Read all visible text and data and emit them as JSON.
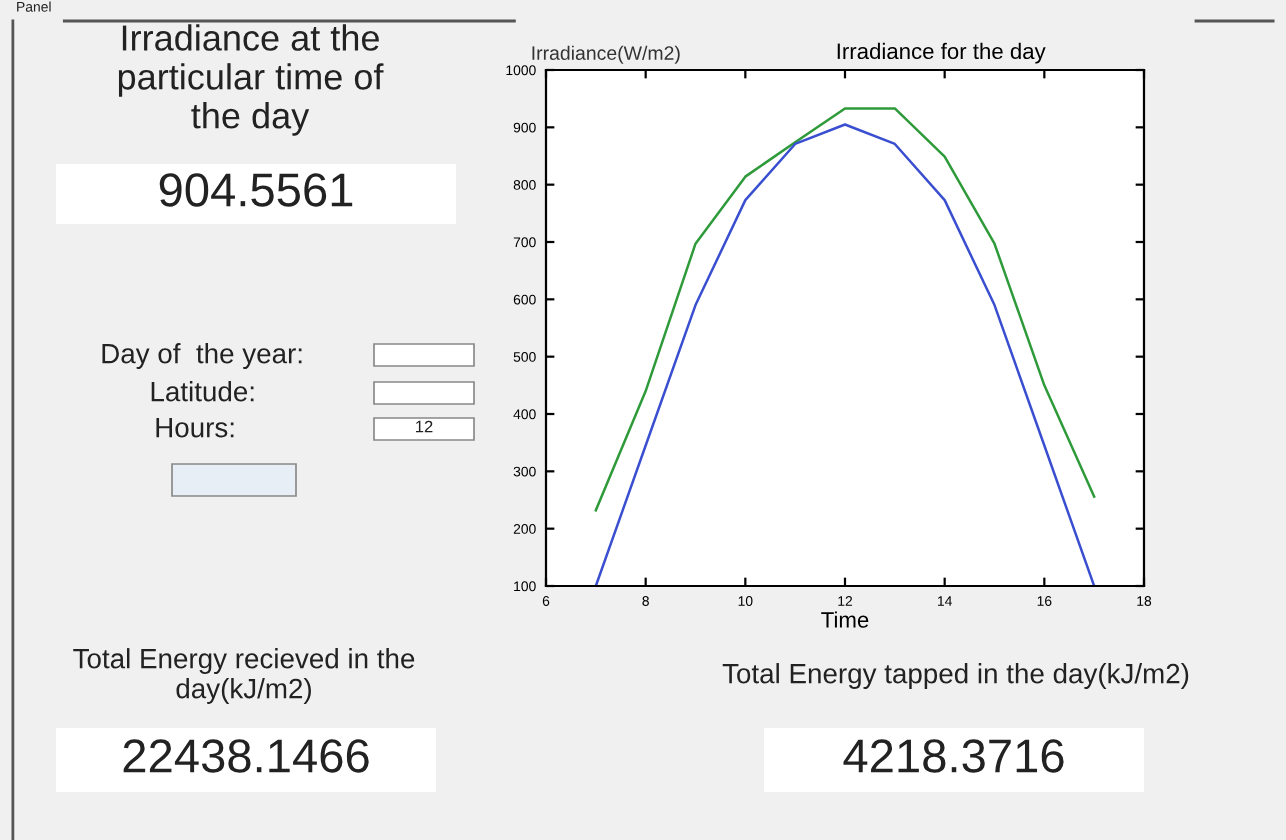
{
  "chart_data": {
    "type": "line",
    "title": "Irradiance for the day",
    "ylabel": "Irradiance(W/m2)",
    "xlabel": "Time",
    "xlim": [
      6,
      18
    ],
    "xticks": [
      6,
      8,
      10,
      12,
      14,
      16,
      18
    ],
    "ylim": [
      100,
      1000
    ],
    "yticks": [
      100,
      200,
      300,
      400,
      500,
      600,
      700,
      800,
      900,
      1000
    ],
    "x": [
      7,
      8,
      9,
      10,
      11,
      12,
      13,
      14,
      15,
      16,
      17
    ],
    "series": [
      {
        "color": "#2e9a3a",
        "values": [
          232,
          440,
          697,
          814,
          874,
          933,
          933,
          849,
          697,
          450,
          256
        ]
      },
      {
        "color": "#3a4fd0",
        "values": [
          100,
          345,
          590,
          773,
          871,
          905,
          871,
          773,
          590,
          345,
          100
        ]
      }
    ],
    "grid": false,
    "legend": false,
    "marker": "none",
    "line_style": "solid",
    "annotations": [
      "Panel",
      "Irradiance at the\nparticular time of\nthe day",
      "904.5561",
      "Day of  the year:",
      "Latitude:",
      "Hours:",
      "12",
      "Total Energy recieved in the\nday(kJ/m2)",
      "22438.1466",
      "Total Energy tapped in the day(kJ/m2)",
      "4218.3716"
    ]
  }
}
